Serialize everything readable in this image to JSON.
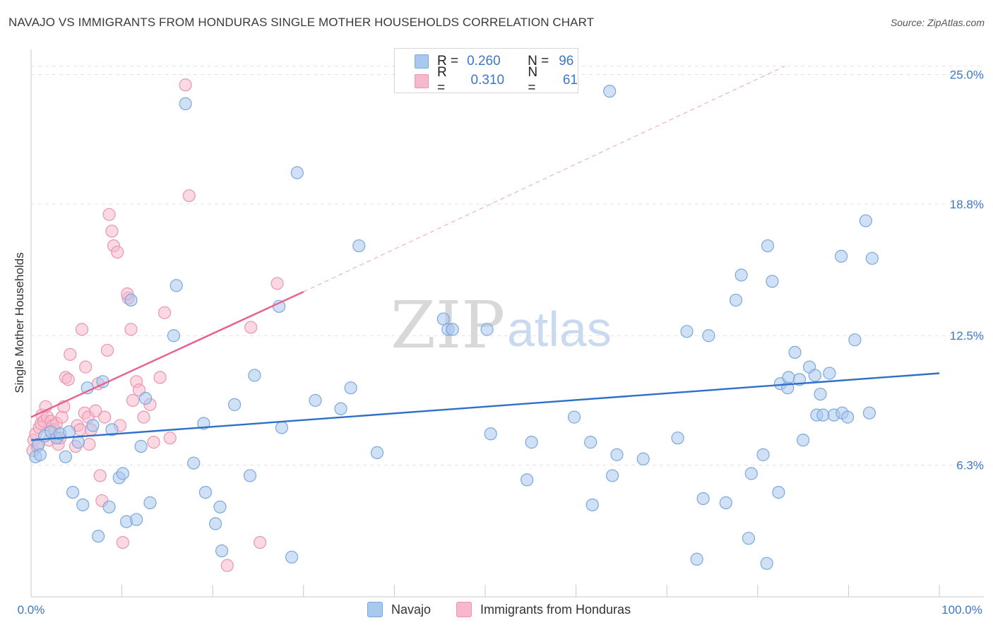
{
  "header": {
    "title": "NAVAJO VS IMMIGRANTS FROM HONDURAS SINGLE MOTHER HOUSEHOLDS CORRELATION CHART",
    "source": "Source: ZipAtlas.com"
  },
  "watermark": {
    "zip": "ZIP",
    "atlas": "atlas"
  },
  "legend": {
    "rows": [
      {
        "r_label": "R =",
        "r_value": "0.260",
        "n_label": "N =",
        "n_value": "96"
      },
      {
        "r_label": "R =",
        "r_value": "0.310",
        "n_label": "N =",
        "n_value": "61"
      }
    ]
  },
  "bottom_legend": {
    "navajo": "Navajo",
    "honduras": "Immigrants from Honduras"
  },
  "colors": {
    "navajo_fill": "#a9c8ee",
    "navajo_stroke": "#7aa8de",
    "navajo_line": "#2f6fc8",
    "honduras_fill": "#f6b9cc",
    "honduras_stroke": "#ec94b0",
    "honduras_line": "#e8608c",
    "axis_label": "#3b78c9",
    "grid": "#e2e2e2"
  },
  "chart_data": {
    "type": "scatter",
    "title": "NAVAJO VS IMMIGRANTS FROM HONDURAS SINGLE MOTHER HOUSEHOLDS CORRELATION CHART",
    "xlabel": "",
    "ylabel": "Single Mother Households",
    "xlim": [
      0,
      100
    ],
    "ylim": [
      0,
      26.2
    ],
    "x_tick_labels": [
      "0.0%",
      "100.0%"
    ],
    "y_ticks": [
      6.3,
      12.5,
      18.8,
      25.0
    ],
    "y_tick_labels": [
      "6.3%",
      "12.5%",
      "18.8%",
      "25.0%"
    ],
    "grid": true,
    "legend_position": "top-center",
    "series": [
      {
        "name": "Navajo",
        "R": 0.26,
        "N": 96,
        "trend": {
          "x": [
            0,
            100
          ],
          "y": [
            7.5,
            10.7
          ]
        },
        "points": [
          [
            0.5,
            6.7
          ],
          [
            0.8,
            7.3
          ],
          [
            1.0,
            6.8
          ],
          [
            1.5,
            7.7
          ],
          [
            2.2,
            7.9
          ],
          [
            2.8,
            7.6
          ],
          [
            3.2,
            7.8
          ],
          [
            3.8,
            6.7
          ],
          [
            4.2,
            7.9
          ],
          [
            4.6,
            5.0
          ],
          [
            5.2,
            7.4
          ],
          [
            5.7,
            4.4
          ],
          [
            6.2,
            10.0
          ],
          [
            6.8,
            8.2
          ],
          [
            7.4,
            2.9
          ],
          [
            7.9,
            10.3
          ],
          [
            8.6,
            4.3
          ],
          [
            8.9,
            8.0
          ],
          [
            9.7,
            5.7
          ],
          [
            10.1,
            5.9
          ],
          [
            10.5,
            3.6
          ],
          [
            11.0,
            14.2
          ],
          [
            11.6,
            3.7
          ],
          [
            12.1,
            7.2
          ],
          [
            12.6,
            9.5
          ],
          [
            13.1,
            4.5
          ],
          [
            15.7,
            12.5
          ],
          [
            16.0,
            14.9
          ],
          [
            17.0,
            23.6
          ],
          [
            17.9,
            6.4
          ],
          [
            19.0,
            8.3
          ],
          [
            19.2,
            5.0
          ],
          [
            20.3,
            3.5
          ],
          [
            20.8,
            4.3
          ],
          [
            21.0,
            2.2
          ],
          [
            22.4,
            9.2
          ],
          [
            24.1,
            5.8
          ],
          [
            24.6,
            10.6
          ],
          [
            27.3,
            13.9
          ],
          [
            27.6,
            8.1
          ],
          [
            28.7,
            1.9
          ],
          [
            29.3,
            20.3
          ],
          [
            31.3,
            9.4
          ],
          [
            34.1,
            9.0
          ],
          [
            35.2,
            10.0
          ],
          [
            36.1,
            16.8
          ],
          [
            38.1,
            6.9
          ],
          [
            45.4,
            13.3
          ],
          [
            45.9,
            12.8
          ],
          [
            46.4,
            12.8
          ],
          [
            50.2,
            12.8
          ],
          [
            50.6,
            7.8
          ],
          [
            54.6,
            5.6
          ],
          [
            55.1,
            7.4
          ],
          [
            59.8,
            8.6
          ],
          [
            61.6,
            7.4
          ],
          [
            61.8,
            4.4
          ],
          [
            63.7,
            24.2
          ],
          [
            64.0,
            5.8
          ],
          [
            64.5,
            6.8
          ],
          [
            67.4,
            6.6
          ],
          [
            71.2,
            7.6
          ],
          [
            72.2,
            12.7
          ],
          [
            73.3,
            1.8
          ],
          [
            74.0,
            4.7
          ],
          [
            74.6,
            12.5
          ],
          [
            76.5,
            4.5
          ],
          [
            77.6,
            14.2
          ],
          [
            78.2,
            15.4
          ],
          [
            79.0,
            2.8
          ],
          [
            79.3,
            5.9
          ],
          [
            80.6,
            6.8
          ],
          [
            81.0,
            1.6
          ],
          [
            81.1,
            16.8
          ],
          [
            81.6,
            15.1
          ],
          [
            82.3,
            5.0
          ],
          [
            82.5,
            10.2
          ],
          [
            83.3,
            10.0
          ],
          [
            83.4,
            10.5
          ],
          [
            84.1,
            11.7
          ],
          [
            84.6,
            10.4
          ],
          [
            85.0,
            7.5
          ],
          [
            85.7,
            11.0
          ],
          [
            86.3,
            10.6
          ],
          [
            86.5,
            8.7
          ],
          [
            86.9,
            9.7
          ],
          [
            87.2,
            8.7
          ],
          [
            87.9,
            10.7
          ],
          [
            88.4,
            8.7
          ],
          [
            89.2,
            16.3
          ],
          [
            89.3,
            8.8
          ],
          [
            89.9,
            8.6
          ],
          [
            90.7,
            12.3
          ],
          [
            91.9,
            18.0
          ],
          [
            92.3,
            8.8
          ],
          [
            92.6,
            16.2
          ]
        ]
      },
      {
        "name": "Immigrants from Honduras",
        "R": 0.31,
        "N": 61,
        "trend_solid": {
          "x": [
            0,
            30
          ],
          "y": [
            8.6,
            14.6
          ]
        },
        "trend_dashed": {
          "x": [
            30,
            83
          ],
          "y": [
            14.6,
            25.4
          ]
        },
        "points": [
          [
            0.2,
            7.0
          ],
          [
            0.3,
            7.5
          ],
          [
            0.5,
            7.8
          ],
          [
            0.7,
            7.2
          ],
          [
            0.9,
            8.1
          ],
          [
            1.1,
            8.3
          ],
          [
            1.2,
            8.7
          ],
          [
            1.4,
            8.4
          ],
          [
            1.6,
            9.1
          ],
          [
            1.8,
            8.6
          ],
          [
            2.0,
            7.5
          ],
          [
            2.2,
            8.4
          ],
          [
            2.4,
            8.2
          ],
          [
            2.6,
            8.0
          ],
          [
            2.8,
            8.3
          ],
          [
            3.0,
            7.3
          ],
          [
            3.2,
            7.6
          ],
          [
            3.4,
            8.6
          ],
          [
            3.6,
            9.1
          ],
          [
            3.8,
            10.5
          ],
          [
            4.1,
            10.4
          ],
          [
            4.3,
            11.6
          ],
          [
            4.9,
            7.2
          ],
          [
            5.1,
            8.2
          ],
          [
            5.4,
            8.0
          ],
          [
            5.6,
            12.8
          ],
          [
            5.9,
            8.8
          ],
          [
            6.0,
            11.0
          ],
          [
            6.3,
            8.6
          ],
          [
            6.6,
            8.0
          ],
          [
            7.1,
            8.9
          ],
          [
            7.4,
            10.2
          ],
          [
            7.6,
            5.8
          ],
          [
            7.8,
            4.6
          ],
          [
            8.1,
            8.6
          ],
          [
            8.4,
            11.8
          ],
          [
            8.6,
            18.3
          ],
          [
            8.9,
            17.5
          ],
          [
            9.1,
            16.8
          ],
          [
            9.5,
            16.5
          ],
          [
            9.8,
            8.2
          ],
          [
            10.1,
            2.6
          ],
          [
            10.7,
            14.3
          ],
          [
            11.0,
            12.8
          ],
          [
            11.2,
            9.4
          ],
          [
            11.6,
            10.3
          ],
          [
            11.9,
            9.9
          ],
          [
            12.4,
            8.6
          ],
          [
            13.1,
            9.2
          ],
          [
            13.5,
            7.4
          ],
          [
            14.2,
            10.5
          ],
          [
            14.7,
            13.6
          ],
          [
            15.3,
            7.6
          ],
          [
            17.4,
            19.2
          ],
          [
            21.6,
            1.5
          ],
          [
            24.2,
            12.9
          ],
          [
            25.2,
            2.6
          ],
          [
            27.1,
            15.0
          ],
          [
            17.0,
            24.5
          ],
          [
            6.4,
            7.3
          ],
          [
            10.6,
            14.5
          ]
        ]
      }
    ]
  }
}
